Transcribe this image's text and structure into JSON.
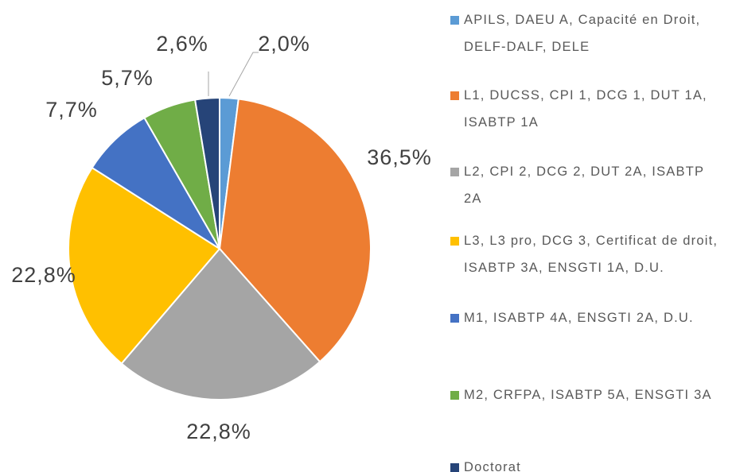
{
  "chart_data": {
    "type": "pie",
    "categories": [
      "APILS, DAEU A, Capacité en Droit, DELF-DALF, DELE",
      "L1, DUCSS, CPI 1, DCG 1, DUT 1A, ISABTP 1A",
      "L2, CPI 2, DCG 2, DUT 2A, ISABTP 2A",
      "L3, L3 pro, DCG 3, Certificat de droit, ISABTP 3A, ENSGTI 1A, D.U.",
      "M1, ISABTP 4A, ENSGTI 2A, D.U.",
      "M2, CRFPA, ISABTP 5A, ENSGTI 3A",
      "Doctorat"
    ],
    "values": [
      2.0,
      36.5,
      22.8,
      22.8,
      7.7,
      5.7,
      2.6
    ],
    "value_labels": [
      "2,0%",
      "36,5%",
      "22,8%",
      "22,8%",
      "7,7%",
      "5,7%",
      "2,6%"
    ],
    "colors": [
      "#5b9bd5",
      "#ed7d31",
      "#a5a5a5",
      "#ffc000",
      "#4472c4",
      "#70ad47",
      "#264478"
    ]
  }
}
